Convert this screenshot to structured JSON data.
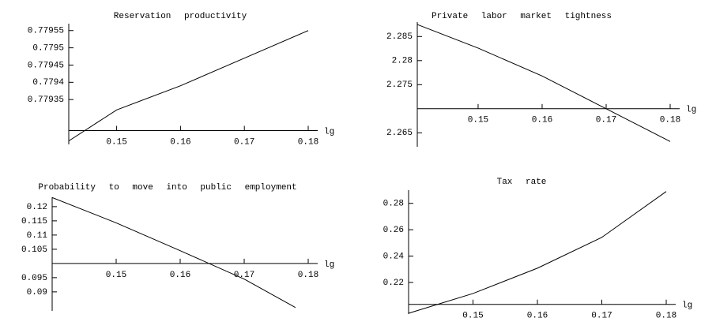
{
  "chart_data": [
    {
      "type": "line",
      "title": "Reservation productivity",
      "x_label": "lg",
      "x": [
        0.1425,
        0.15,
        0.16,
        0.17,
        0.18
      ],
      "values": [
        0.77923,
        0.77932,
        0.77939,
        0.77947,
        0.77955
      ],
      "xlim": [
        0.1425,
        0.18
      ],
      "ylim": [
        0.77922,
        0.77957
      ],
      "xticks": [
        0.15,
        0.16,
        0.17,
        0.18
      ],
      "yticks": [
        0.77935,
        0.7794,
        0.77945,
        0.7795,
        0.77955
      ],
      "xaxis_at": 0.77926,
      "color": "#000000"
    },
    {
      "type": "line",
      "title": "Private labor market tightness",
      "x_label": "lg",
      "x": [
        0.1405,
        0.15,
        0.16,
        0.17,
        0.18
      ],
      "values": [
        2.2875,
        2.2826,
        2.2768,
        2.27,
        2.2632
      ],
      "xlim": [
        0.1405,
        0.18
      ],
      "ylim": [
        2.2621,
        2.288
      ],
      "xticks": [
        0.15,
        0.16,
        0.17,
        0.18
      ],
      "yticks": [
        2.265,
        2.275,
        2.28,
        2.285
      ],
      "xaxis_at": 2.27,
      "color": "#000000"
    },
    {
      "type": "line",
      "title": "Probability to move into public employment",
      "x_label": "lg",
      "x": [
        0.14,
        0.15,
        0.16,
        0.17,
        0.178
      ],
      "values": [
        0.1232,
        0.1143,
        0.1045,
        0.0945,
        0.0845
      ],
      "xlim": [
        0.14,
        0.18
      ],
      "ylim": [
        0.0833,
        0.1233
      ],
      "xticks": [
        0.15,
        0.16,
        0.17,
        0.18
      ],
      "yticks": [
        0.09,
        0.095,
        0.105,
        0.11,
        0.115,
        0.12
      ],
      "xaxis_at": 0.1,
      "color": "#000000"
    },
    {
      "type": "line",
      "title": "Tax rate",
      "x_label": "lg",
      "x": [
        0.14,
        0.15,
        0.16,
        0.17,
        0.18
      ],
      "values": [
        0.1966,
        0.2116,
        0.2308,
        0.2542,
        0.289
      ],
      "xlim": [
        0.14,
        0.18
      ],
      "ylim": [
        0.196,
        0.29
      ],
      "xticks": [
        0.15,
        0.16,
        0.17,
        0.18
      ],
      "yticks": [
        0.22,
        0.24,
        0.26,
        0.28
      ],
      "xaxis_at": 0.2033,
      "color": "#000000"
    }
  ]
}
